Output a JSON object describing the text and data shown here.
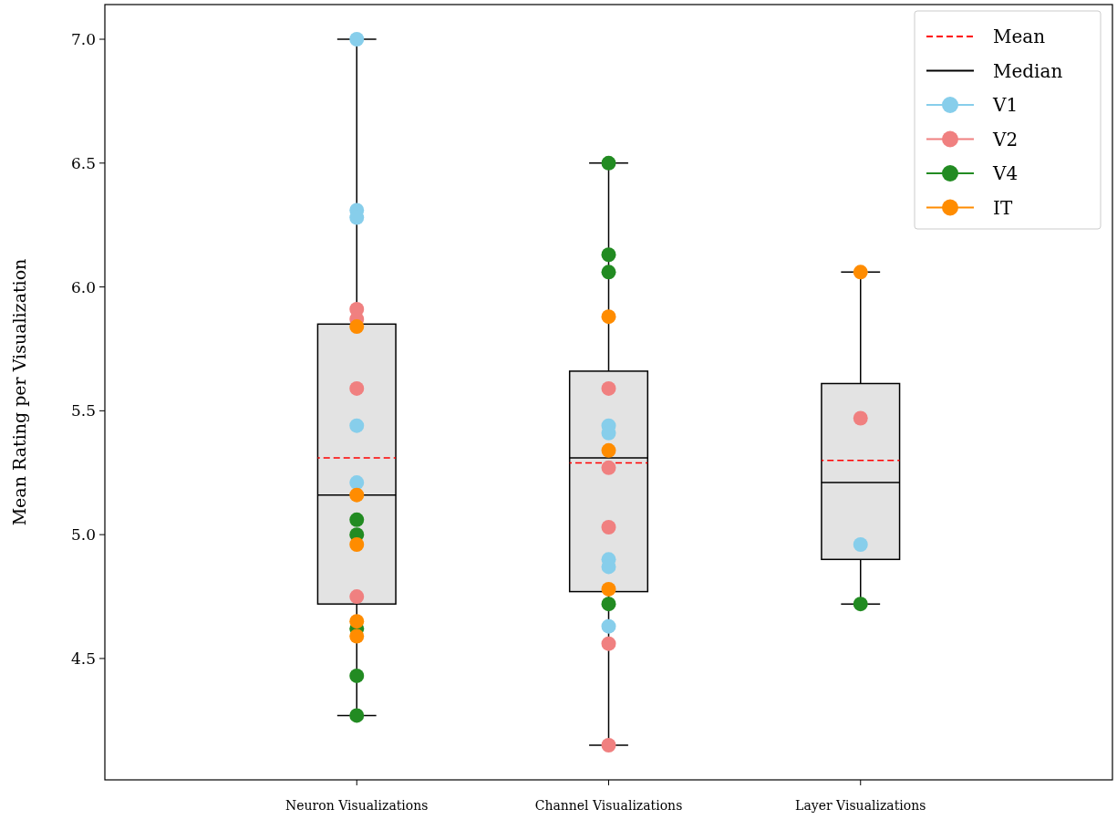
{
  "chart_data": {
    "type": "box",
    "ylabel": "Mean Rating per Visualization",
    "categories": [
      "Neuron Visualizations",
      "Channel Visualizations",
      "Layer Visualizations"
    ],
    "ylim": [
      4.01,
      7.14
    ],
    "yticks": [
      4.5,
      {
        "value": 5,
        "label": "5.0"
      },
      5.5,
      {
        "value": 6,
        "label": "6.0"
      },
      6.5,
      {
        "value": 7,
        "label": "7.0"
      }
    ],
    "grid": false,
    "legend": "top right",
    "marker": "circle",
    "series": [
      {
        "name": "Mean",
        "type": "line",
        "color": "#ff0000",
        "line_style": "dashed",
        "marker": "none",
        "values": [
          null,
          null,
          null
        ]
      },
      {
        "name": "Median",
        "color": "#000000",
        "boxes": [
          {
            "low": 4.27,
            "q1": 4.72,
            "median": 5.16,
            "q3": 5.85,
            "high": 7.0,
            "mean": 5.31
          },
          {
            "low": 4.15,
            "q1": 4.77,
            "median": 5.31,
            "q3": 5.66,
            "high": 6.5,
            "mean": 5.29
          },
          {
            "low": 4.72,
            "q1": 4.9,
            "median": 5.21,
            "q3": 5.61,
            "high": 6.06,
            "mean": 5.3
          }
        ]
      },
      {
        "name": "V1",
        "type": "scatter",
        "color": "#87ceeb",
        "x": [
          "Neuron Visualizations",
          "Neuron Visualizations",
          "Neuron Visualizations",
          "Neuron Visualizations",
          "Neuron Visualizations",
          "Channel Visualizations",
          "Channel Visualizations",
          "Channel Visualizations",
          "Channel Visualizations",
          "Channel Visualizations",
          "Layer Visualizations"
        ],
        "values": [
          7.0,
          6.31,
          6.28,
          5.44,
          5.21,
          5.44,
          5.41,
          4.9,
          4.87,
          4.63,
          4.96
        ]
      },
      {
        "name": "V2",
        "type": "scatter",
        "color": "#f08080",
        "x": [
          "Neuron Visualizations",
          "Neuron Visualizations",
          "Neuron Visualizations",
          "Neuron Visualizations",
          "Channel Visualizations",
          "Channel Visualizations",
          "Channel Visualizations",
          "Channel Visualizations",
          "Channel Visualizations",
          "Layer Visualizations"
        ],
        "values": [
          5.91,
          5.87,
          5.59,
          4.75,
          5.59,
          5.27,
          5.03,
          4.56,
          4.15,
          5.47
        ]
      },
      {
        "name": "V4",
        "type": "scatter",
        "color": "#228b22",
        "x": [
          "Neuron Visualizations",
          "Neuron Visualizations",
          "Neuron Visualizations",
          "Neuron Visualizations",
          "Neuron Visualizations",
          "Channel Visualizations",
          "Channel Visualizations",
          "Channel Visualizations",
          "Channel Visualizations",
          "Layer Visualizations"
        ],
        "values": [
          5.06,
          5.0,
          4.62,
          4.43,
          4.27,
          6.5,
          6.13,
          6.06,
          4.72,
          4.72
        ]
      },
      {
        "name": "IT",
        "type": "scatter",
        "color": "#ff8c00",
        "x": [
          "Neuron Visualizations",
          "Neuron Visualizations",
          "Neuron Visualizations",
          "Neuron Visualizations",
          "Neuron Visualizations",
          "Channel Visualizations",
          "Channel Visualizations",
          "Channel Visualizations",
          "Layer Visualizations"
        ],
        "values": [
          5.84,
          5.16,
          4.96,
          4.65,
          4.59,
          5.88,
          5.34,
          4.78,
          6.06
        ]
      }
    ]
  }
}
